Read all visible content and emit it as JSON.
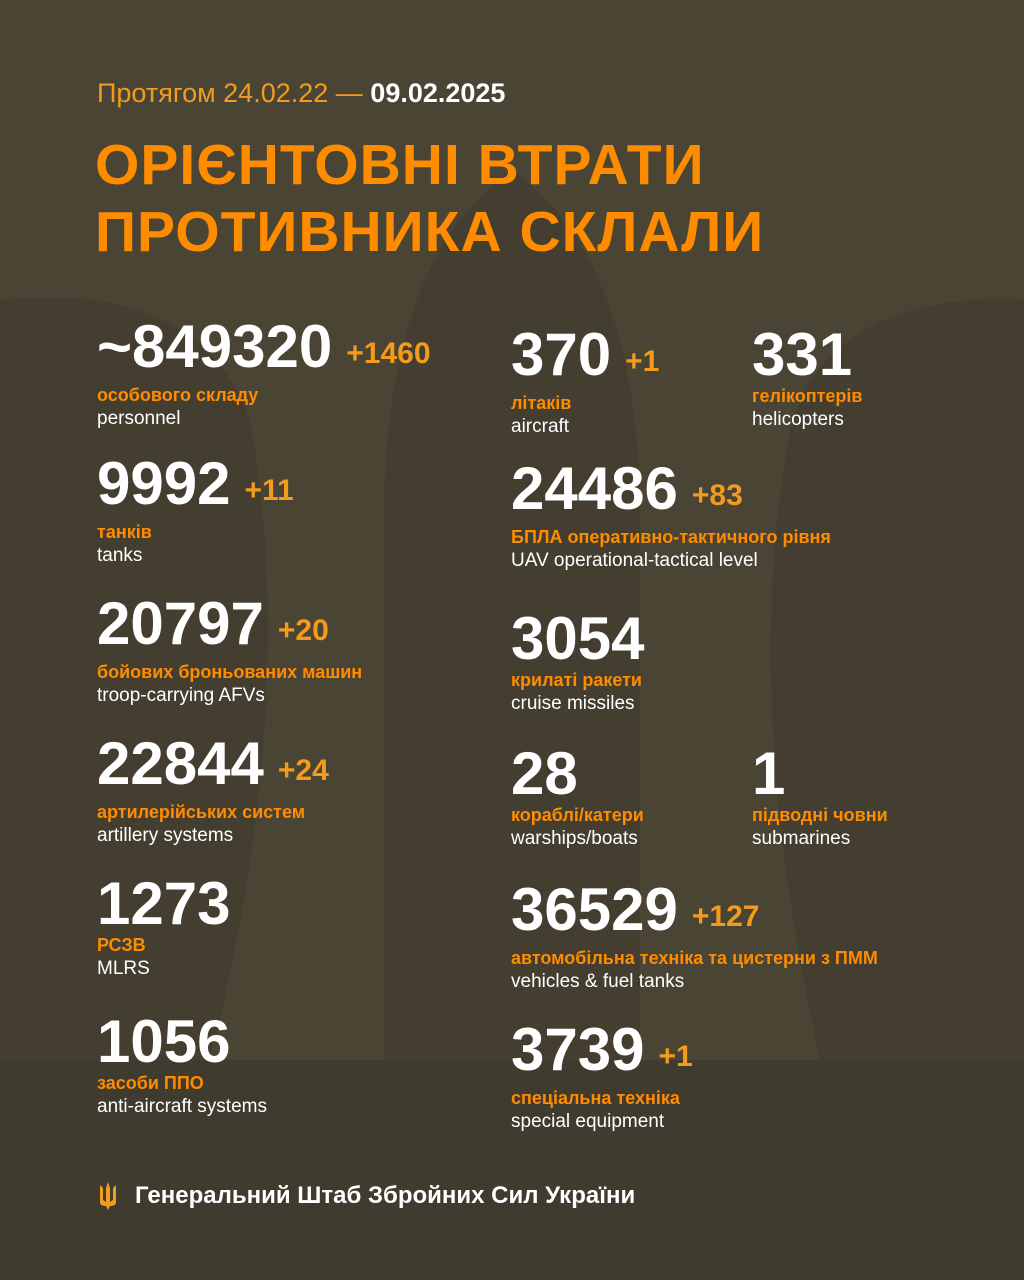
{
  "header": {
    "period_prefix": "Протягом 24.02.22 —",
    "period_end": "09.02.2025",
    "title_line1": "ОРІЄНТОВНІ ВТРАТИ",
    "title_line2": "ПРОТИВНИКА СКЛАЛИ"
  },
  "items": [
    {
      "value": "~849320",
      "delta": "+1460",
      "ua": "особового складу",
      "en": "personnel"
    },
    {
      "value": "9992",
      "delta": "+11",
      "ua": "танків",
      "en": "tanks"
    },
    {
      "value": "20797",
      "delta": "+20",
      "ua": "бойових броньованих машин",
      "en": "troop-carrying AFVs"
    },
    {
      "value": "22844",
      "delta": "+24",
      "ua": "артилерійських систем",
      "en": "artillery systems"
    },
    {
      "value": "1273",
      "delta": "",
      "ua": "РСЗВ",
      "en": "MLRS"
    },
    {
      "value": "1056",
      "delta": "",
      "ua": "засоби ППО",
      "en": "anti-aircraft systems"
    },
    {
      "value": "370",
      "delta": "+1",
      "ua": "літаків",
      "en": "aircraft"
    },
    {
      "value": "331",
      "delta": "",
      "ua": "гелікоптерів",
      "en": "helicopters"
    },
    {
      "value": "24486",
      "delta": "+83",
      "ua": "БПЛА оперативно-тактичного рівня",
      "en": "UAV operational-tactical level"
    },
    {
      "value": "3054",
      "delta": "",
      "ua": "крилаті ракети",
      "en": "cruise missiles"
    },
    {
      "value": "28",
      "delta": "",
      "ua": "кораблі/катери",
      "en": "warships/boats"
    },
    {
      "value": "1",
      "delta": "",
      "ua": "підводні човни",
      "en": "submarines"
    },
    {
      "value": "36529",
      "delta": "+127",
      "ua": "автомобільна техніка та цистерни з ПММ",
      "en": "vehicles & fuel tanks"
    },
    {
      "value": "3739",
      "delta": "+1",
      "ua": "спеціальна техніка",
      "en": "special equipment"
    }
  ],
  "footer": {
    "org": "Генеральний Штаб Збройних Сил України",
    "icon": "trident-icon"
  },
  "colors": {
    "background": "#4a4434",
    "accent": "#ff8c00",
    "text": "#ffffff"
  }
}
